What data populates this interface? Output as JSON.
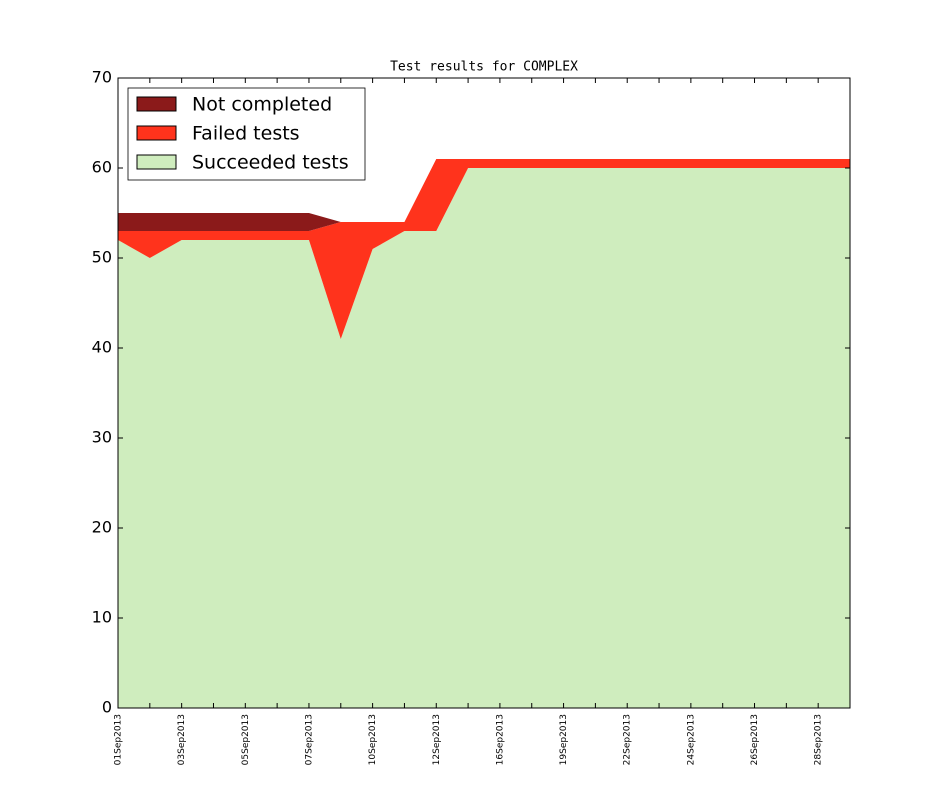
{
  "chart_data": {
    "type": "stacked_area",
    "title": "Test results for COMPLEX",
    "categories": [
      "01Sep2013",
      null,
      "03Sep2013",
      null,
      "05Sep2013",
      null,
      "07Sep2013",
      null,
      "10Sep2013",
      null,
      "12Sep2013",
      null,
      "16Sep2013",
      null,
      "19Sep2013",
      null,
      "22Sep2013",
      null,
      "24Sep2013",
      null,
      "26Sep2013",
      null,
      "28Sep2013",
      null
    ],
    "series": [
      {
        "name": "Succeeded tests",
        "color": "#cfedbe",
        "values": [
          52,
          50,
          52,
          52,
          52,
          52,
          52,
          41,
          51,
          53,
          53,
          60,
          60,
          60,
          60,
          60,
          60,
          60,
          60,
          60,
          60,
          60,
          60,
          60
        ]
      },
      {
        "name": "Failed tests",
        "color": "#ff331c",
        "values": [
          1,
          3,
          1,
          1,
          1,
          1,
          1,
          13,
          3,
          1,
          8,
          1,
          1,
          1,
          1,
          1,
          1,
          1,
          1,
          1,
          1,
          1,
          1,
          1
        ]
      },
      {
        "name": "Not completed",
        "color": "#8b1a1a",
        "values": [
          2,
          2,
          2,
          2,
          2,
          2,
          2,
          0,
          0,
          0,
          0,
          0,
          0,
          0,
          0,
          0,
          0,
          0,
          0,
          0,
          0,
          0,
          0,
          0
        ]
      }
    ],
    "ylim": [
      0,
      70
    ],
    "yticks": [
      0,
      10,
      20,
      30,
      40,
      50,
      60,
      70
    ],
    "legend": "upper left"
  }
}
